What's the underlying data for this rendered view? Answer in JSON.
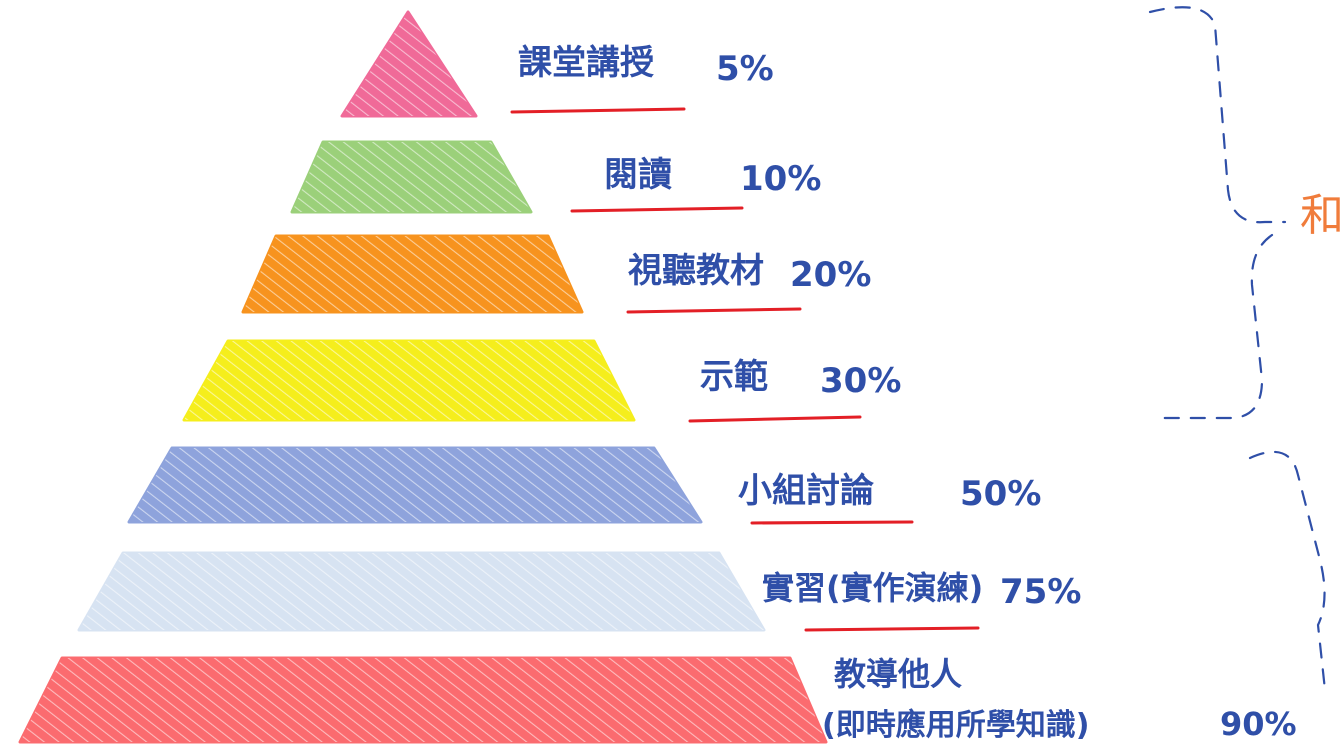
{
  "pyramid": {
    "levels": [
      {
        "label": "課堂講授",
        "percent": "5%",
        "color": "#f06a98"
      },
      {
        "label": "閱讀",
        "percent": "10%",
        "color": "#9bd07a"
      },
      {
        "label": "視聽教材",
        "percent": "20%",
        "color": "#f7931e"
      },
      {
        "label": "示範",
        "percent": "30%",
        "color": "#f5ee1c"
      },
      {
        "label": "小組討論",
        "percent": "50%",
        "color": "#8ea3dc"
      },
      {
        "label": "實習(實作演練)",
        "percent": "75%",
        "color": "#d7e3f2"
      },
      {
        "label": "教導他人",
        "sublabel": "(即時應用所學知識)",
        "percent": "90%",
        "color": "#fb6b6f"
      }
    ],
    "side_text_fragment": "和",
    "colors": {
      "label_text": "#2f4fa8",
      "underline": "#e31f26",
      "bracket": "#2f4fa8",
      "side_text": "#f07c3b"
    }
  }
}
